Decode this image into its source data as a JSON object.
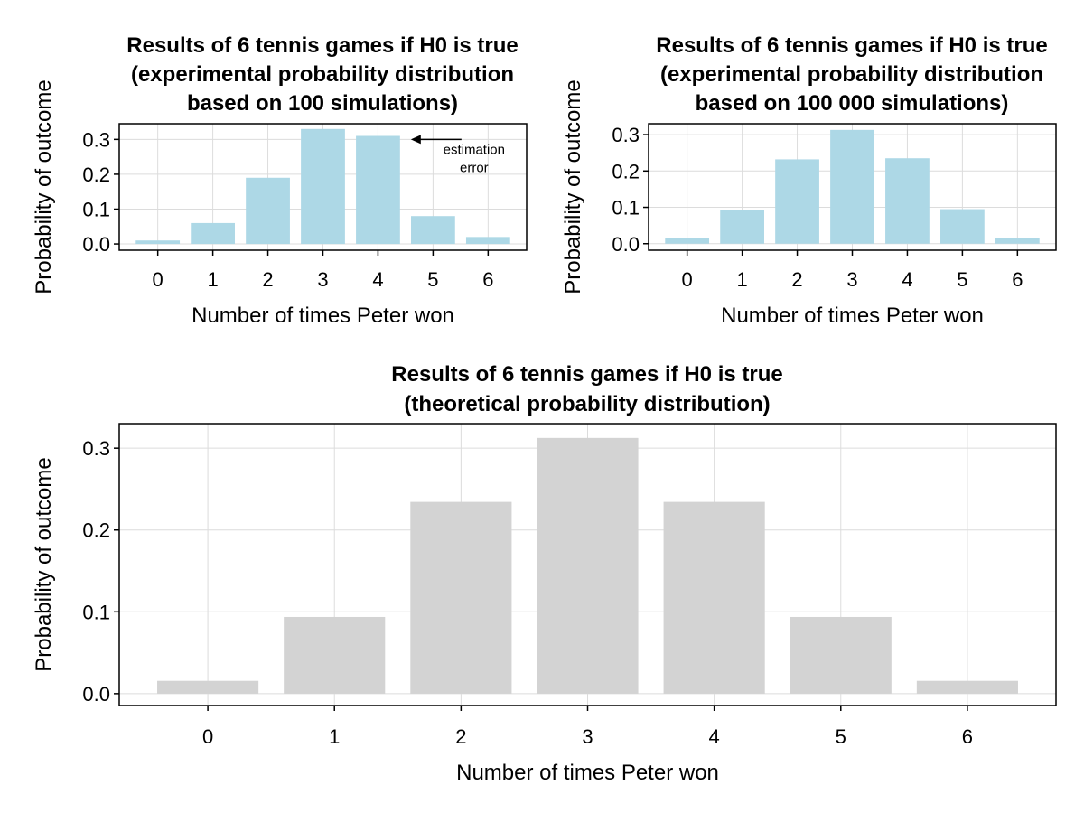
{
  "chart_data": [
    {
      "type": "bar",
      "title_lines": [
        "Results of 6 tennis games if H0 is true",
        "(experimental probability distribution",
        "based on 100 simulations)"
      ],
      "xlabel": "Number of times Peter won",
      "ylabel": "Probability of outcome",
      "categories": [
        "0",
        "1",
        "2",
        "3",
        "4",
        "5",
        "6"
      ],
      "values": [
        0.01,
        0.06,
        0.19,
        0.33,
        0.31,
        0.08,
        0.02
      ],
      "ylim": [
        -0.018,
        0.345
      ],
      "yticks": [
        "0.0",
        "0.1",
        "0.2",
        "0.3"
      ],
      "bar_color": "#add8e6",
      "grid": true,
      "annotation": {
        "lines": [
          "estimation",
          "error"
        ],
        "points_to_category": "4",
        "points_to_value": 0.3
      }
    },
    {
      "type": "bar",
      "title_lines": [
        "Results of 6 tennis games if H0 is true",
        "(experimental probability distribution",
        "based on 100 000 simulations)"
      ],
      "xlabel": "Number of times Peter won",
      "ylabel": "Probability of outcome",
      "categories": [
        "0",
        "1",
        "2",
        "3",
        "4",
        "5",
        "6"
      ],
      "values": [
        0.016,
        0.093,
        0.232,
        0.313,
        0.235,
        0.095,
        0.016
      ],
      "ylim": [
        -0.018,
        0.33
      ],
      "yticks": [
        "0.0",
        "0.1",
        "0.2",
        "0.3"
      ],
      "bar_color": "#add8e6",
      "grid": true
    },
    {
      "type": "bar",
      "title_lines": [
        "Results of 6 tennis games if H0 is true",
        "(theoretical probability distribution)"
      ],
      "xlabel": "Number of times Peter won",
      "ylabel": "Probability of outcome",
      "categories": [
        "0",
        "1",
        "2",
        "3",
        "4",
        "5",
        "6"
      ],
      "values": [
        0.015625,
        0.09375,
        0.234375,
        0.3125,
        0.234375,
        0.09375,
        0.015625
      ],
      "ylim": [
        -0.0145,
        0.33
      ],
      "yticks": [
        "0.0",
        "0.1",
        "0.2",
        "0.3"
      ],
      "bar_color": "#d3d3d3",
      "grid": true
    }
  ]
}
